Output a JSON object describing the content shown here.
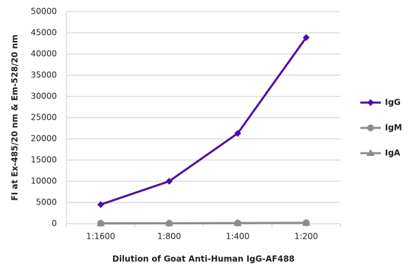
{
  "chart_data": {
    "type": "line",
    "x_label": "Dilution of Goat Anti-Human IgG-AF488",
    "y_label": "FI at Ex-485/20 nm & Em-528/20 nm",
    "categories": [
      "1:1600",
      "1:800",
      "1:400",
      "1:200"
    ],
    "series": [
      {
        "name": "IgG",
        "color": "#4b0fa3",
        "marker": "diamond",
        "values": [
          4500,
          10000,
          21300,
          43900
        ]
      },
      {
        "name": "IgM",
        "color": "#8c8c8c",
        "marker": "circle",
        "values": [
          100,
          100,
          150,
          200
        ]
      },
      {
        "name": "IgA",
        "color": "#8c8c8c",
        "marker": "triangle",
        "values": [
          50,
          80,
          100,
          150
        ]
      }
    ],
    "ylim": [
      0,
      50000
    ],
    "yticks": [
      0,
      5000,
      10000,
      15000,
      20000,
      25000,
      30000,
      35000,
      40000,
      45000,
      50000
    ],
    "grid": true
  }
}
